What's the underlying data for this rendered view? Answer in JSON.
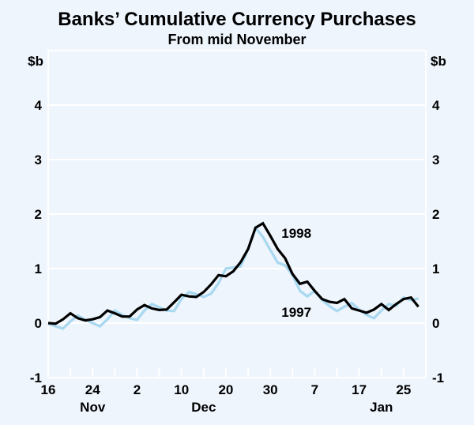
{
  "chart_data": {
    "type": "line",
    "title": "Banks’ Cumulative Currency Purchases",
    "subtitle": "From mid November",
    "ylabel": "$b",
    "ylim": [
      -1,
      5
    ],
    "yticks": [
      -1,
      0,
      1,
      2,
      3,
      4
    ],
    "xlim": [
      0,
      51
    ],
    "x_unit": "business days from 16 Nov",
    "xticks": [
      {
        "x": 0,
        "label": "16"
      },
      {
        "x": 6,
        "label": "24"
      },
      {
        "x": 12,
        "label": "2"
      },
      {
        "x": 18,
        "label": "10"
      },
      {
        "x": 24,
        "label": "20"
      },
      {
        "x": 30,
        "label": "30"
      },
      {
        "x": 36,
        "label": "7"
      },
      {
        "x": 42,
        "label": "17"
      },
      {
        "x": 48,
        "label": "25"
      }
    ],
    "month_labels": [
      {
        "x": 6,
        "label": "Nov"
      },
      {
        "x": 21,
        "label": "Dec"
      },
      {
        "x": 45,
        "label": "Jan"
      }
    ],
    "grid": true,
    "series": [
      {
        "name": "1998",
        "color": "#000000",
        "label_at": [
          31.5,
          1.65
        ],
        "values": [
          0.0,
          -0.01,
          0.07,
          0.18,
          0.09,
          0.05,
          0.07,
          0.11,
          0.23,
          0.18,
          0.12,
          0.12,
          0.25,
          0.33,
          0.27,
          0.24,
          0.25,
          0.38,
          0.52,
          0.49,
          0.48,
          0.57,
          0.71,
          0.88,
          0.86,
          0.95,
          1.12,
          1.36,
          1.75,
          1.83,
          1.6,
          1.36,
          1.19,
          0.9,
          0.72,
          0.76,
          0.59,
          0.44,
          0.39,
          0.37,
          0.44,
          0.27,
          0.23,
          0.19,
          0.25,
          0.35,
          0.24,
          0.35,
          0.44,
          0.47,
          0.3
        ]
      },
      {
        "name": "1997",
        "color": "#a8d8f0",
        "label_at": [
          31.5,
          0.2
        ],
        "values": [
          -0.01,
          -0.06,
          -0.1,
          0.03,
          0.14,
          0.06,
          0.0,
          -0.06,
          0.07,
          0.23,
          0.15,
          0.09,
          0.06,
          0.23,
          0.35,
          0.29,
          0.23,
          0.22,
          0.44,
          0.57,
          0.53,
          0.48,
          0.54,
          0.73,
          1.0,
          1.02,
          1.04,
          1.36,
          1.75,
          1.58,
          1.34,
          1.11,
          1.06,
          0.88,
          0.59,
          0.49,
          0.59,
          0.42,
          0.31,
          0.22,
          0.3,
          0.37,
          0.25,
          0.15,
          0.09,
          0.23,
          0.35,
          0.32,
          0.47,
          0.42,
          0.45
        ]
      }
    ]
  }
}
